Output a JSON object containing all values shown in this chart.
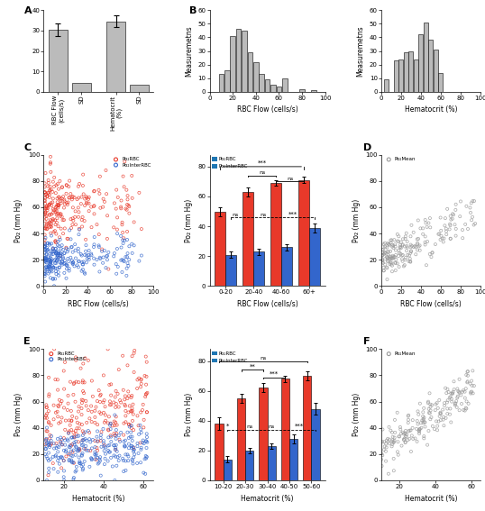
{
  "panel_A": {
    "values": [
      30.5,
      4.5,
      34.5,
      3.5
    ],
    "errors": [
      3.2,
      0,
      2.8,
      0
    ],
    "ylim": [
      0,
      40
    ],
    "yticks": [
      0,
      10,
      20,
      30,
      40
    ],
    "xlabels": [
      "RBC Flow\n(cells/s)",
      "SD",
      "Hematocrit\n(%)",
      "SD"
    ]
  },
  "panel_B_left": {
    "bin_centers": [
      5,
      10,
      15,
      20,
      25,
      30,
      35,
      40,
      45,
      50,
      55,
      60,
      65,
      70,
      75,
      80,
      85,
      90,
      95
    ],
    "counts": [
      0,
      13,
      16,
      41,
      46,
      45,
      29,
      22,
      13,
      9,
      5,
      4,
      10,
      0,
      0,
      2,
      0,
      1,
      0
    ],
    "xlabel": "RBC Flow (cells/s)",
    "ylabel": "Measuremetns",
    "ylim": [
      0,
      60
    ],
    "xlim": [
      0,
      100
    ],
    "xticks": [
      0,
      20,
      40,
      60,
      80,
      100
    ],
    "yticks": [
      0,
      10,
      20,
      30,
      40,
      50,
      60
    ]
  },
  "panel_B_right": {
    "bin_centers": [
      5,
      10,
      15,
      20,
      25,
      30,
      35,
      40,
      45,
      50,
      55,
      60,
      65,
      70,
      75,
      80,
      85,
      90,
      95
    ],
    "counts": [
      9,
      0,
      23,
      24,
      29,
      30,
      24,
      42,
      51,
      38,
      31,
      14,
      0,
      0,
      0,
      0,
      0,
      0,
      0
    ],
    "xlabel": "Hematocrit (%)",
    "ylabel": "Measuremetns",
    "ylim": [
      0,
      60
    ],
    "xlim": [
      0,
      100
    ],
    "xticks": [
      0,
      20,
      40,
      60,
      80,
      100
    ],
    "yticks": [
      0,
      10,
      20,
      30,
      40,
      50,
      60
    ]
  },
  "panel_C_bar": {
    "groups": [
      "0-20",
      "20-40",
      "40-60",
      "60+"
    ],
    "rbc_means": [
      50,
      63,
      69,
      71
    ],
    "inter_means": [
      21,
      23,
      26,
      39
    ],
    "rbc_errors": [
      3,
      3,
      2,
      2
    ],
    "inter_errors": [
      2,
      2,
      2,
      3
    ],
    "ylim": [
      0,
      88
    ],
    "yticks": [
      0,
      20,
      40,
      60,
      80
    ],
    "xlabel": "RBC Flow (cells/s)",
    "ylabel": "Po₂ (mm Hg)"
  },
  "panel_E_bar": {
    "groups": [
      "10-20",
      "20-30",
      "30-40",
      "40-50",
      "50-60"
    ],
    "rbc_means": [
      38,
      55,
      62,
      68,
      70
    ],
    "inter_means": [
      14,
      20,
      23,
      28,
      48
    ],
    "rbc_errors": [
      4,
      3,
      3,
      2,
      3
    ],
    "inter_errors": [
      2,
      2,
      2,
      3,
      4
    ],
    "ylim": [
      0,
      88
    ],
    "yticks": [
      0,
      20,
      40,
      60,
      80
    ],
    "xlabel": "Hematocrit (%)",
    "ylabel": "Po₂ (mm Hg)"
  },
  "colors": {
    "rbc_red": "#E8392A",
    "inter_blue": "#3366CC",
    "gray": "#999999",
    "bar_gray": "#BBBBBB"
  }
}
